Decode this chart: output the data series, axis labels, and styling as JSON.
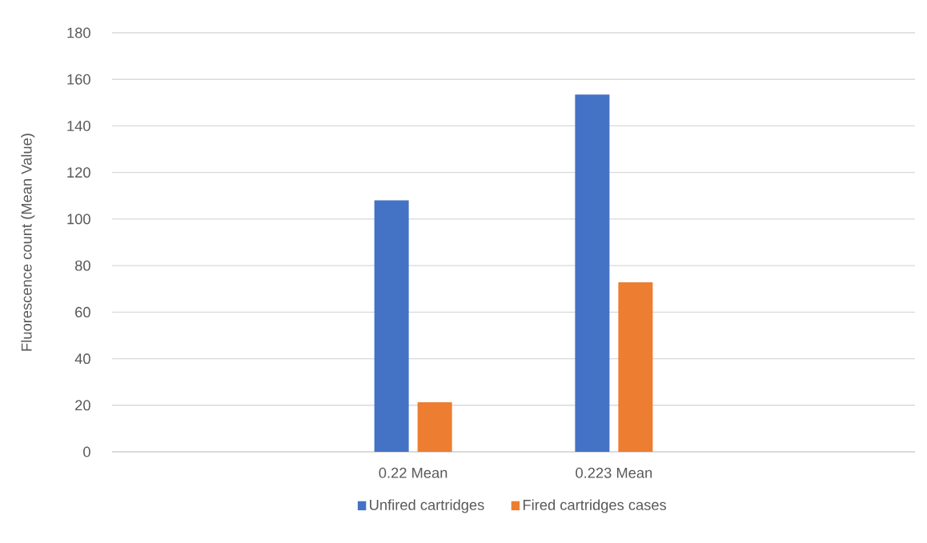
{
  "chart_data": {
    "type": "bar",
    "ylabel": "Fluorescence count (Mean Value)",
    "categories": [
      null,
      "0.22 Mean",
      "0.223 Mean",
      null
    ],
    "series": [
      {
        "name": "Unfired cartridges",
        "color": "#4472c4",
        "values": [
          null,
          108,
          153.5,
          null
        ]
      },
      {
        "name": "Fired cartridges cases",
        "color": "#ed7d31",
        "values": [
          null,
          21.3,
          72.8,
          null
        ]
      }
    ],
    "ylim": [
      0,
      180
    ],
    "yticks": [
      0,
      20,
      40,
      60,
      80,
      100,
      120,
      140,
      160,
      180
    ],
    "grid": "y",
    "legend": "bottom"
  }
}
